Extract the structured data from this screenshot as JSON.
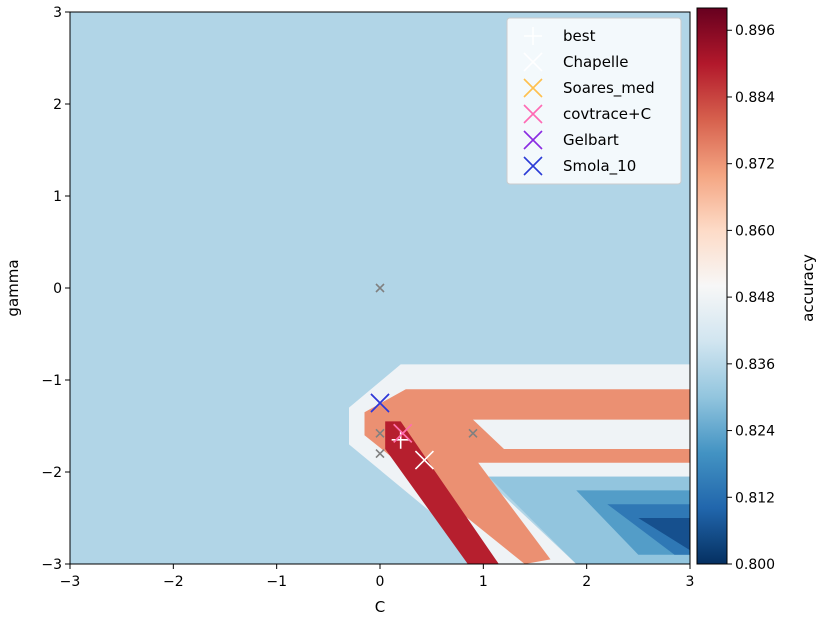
{
  "chart_data": {
    "type": "heatmap",
    "title": "",
    "xlabel": "C",
    "ylabel": "gamma",
    "xlim": [
      -3,
      3
    ],
    "ylim": [
      -3,
      3
    ],
    "x_ticks": [
      -3,
      -2,
      -1,
      0,
      1,
      2,
      3
    ],
    "y_ticks": [
      -3,
      -2,
      -1,
      0,
      1,
      2,
      3
    ],
    "x_tick_labels": [
      "−3",
      "−2",
      "−1",
      "0",
      "1",
      "2",
      "3"
    ],
    "y_tick_labels": [
      "−3",
      "−2",
      "−1",
      "0",
      "1",
      "2",
      "3"
    ],
    "background_value": 0.835,
    "colorbar": {
      "label": "accuracy",
      "range": [
        0.8,
        0.9
      ],
      "ticks": [
        0.8,
        0.812,
        0.824,
        0.836,
        0.848,
        0.86,
        0.872,
        0.884,
        0.896
      ],
      "tick_labels": [
        "0.800",
        "0.812",
        "0.824",
        "0.836",
        "0.848",
        "0.860",
        "0.872",
        "0.884",
        "0.896"
      ],
      "colormap": "RdBu_r"
    },
    "regions": [
      {
        "value": 0.848,
        "polygon": [
          [
            -0.3,
            -1.3
          ],
          [
            0.2,
            -0.83
          ],
          [
            3,
            -0.83
          ],
          [
            3,
            -2.05
          ],
          [
            1.0,
            -2.05
          ],
          [
            1.9,
            -3
          ],
          [
            1.1,
            -3
          ],
          [
            -0.3,
            -1.7
          ]
        ]
      },
      {
        "value": 0.873,
        "polygon": [
          [
            -0.15,
            -1.35
          ],
          [
            0.25,
            -1.1
          ],
          [
            3,
            -1.1
          ],
          [
            3,
            -1.43
          ],
          [
            0.9,
            -1.43
          ],
          [
            1.2,
            -1.75
          ],
          [
            3,
            -1.75
          ],
          [
            3,
            -1.9
          ],
          [
            0.95,
            -1.9
          ],
          [
            1.65,
            -2.95
          ],
          [
            1.4,
            -3
          ],
          [
            -0.15,
            -1.6
          ]
        ]
      },
      {
        "value": 0.889,
        "polygon": [
          [
            0.05,
            -1.45
          ],
          [
            0.2,
            -1.45
          ],
          [
            1.15,
            -3
          ],
          [
            0.85,
            -3
          ],
          [
            0.05,
            -1.75
          ]
        ]
      },
      {
        "value": 0.83,
        "polygon": [
          [
            1.05,
            -2.05
          ],
          [
            3,
            -2.05
          ],
          [
            3,
            -3
          ],
          [
            1.9,
            -3
          ]
        ]
      },
      {
        "value": 0.822,
        "polygon": [
          [
            1.9,
            -2.2
          ],
          [
            3,
            -2.2
          ],
          [
            3,
            -2.9
          ],
          [
            2.5,
            -2.9
          ]
        ]
      },
      {
        "value": 0.814,
        "polygon": [
          [
            2.2,
            -2.35
          ],
          [
            3,
            -2.35
          ],
          [
            3,
            -2.9
          ],
          [
            2.85,
            -2.9
          ]
        ]
      },
      {
        "value": 0.806,
        "polygon": [
          [
            2.5,
            -2.5
          ],
          [
            3,
            -2.5
          ],
          [
            3,
            -2.85
          ]
        ]
      }
    ],
    "grid_points": [
      [
        0,
        0
      ],
      [
        0,
        -1.58
      ],
      [
        0,
        -1.8
      ],
      [
        0.9,
        -1.58
      ]
    ],
    "markers": [
      {
        "name": "best",
        "x": 0.2,
        "y": -1.65,
        "color": "#ffffff",
        "symbol": "plus"
      },
      {
        "name": "Chapelle",
        "x": 0.43,
        "y": -1.87,
        "color": "#ffffff",
        "symbol": "x"
      },
      {
        "name": "Soares_med",
        "x": 0.22,
        "y": -1.58,
        "color": "#ffc04d",
        "symbol": "x"
      },
      {
        "name": "covtrace+C",
        "x": 0.22,
        "y": -1.58,
        "color": "#ff69b4",
        "symbol": "x"
      },
      {
        "name": "Gelbart",
        "x": 0.0,
        "y": -1.25,
        "color": "#8a2be2",
        "symbol": "x"
      },
      {
        "name": "Smola_10",
        "x": 0.0,
        "y": -1.25,
        "color": "#2b3bd6",
        "symbol": "x"
      }
    ],
    "legend": {
      "placement": "top-right",
      "entries": [
        "best",
        "Chapelle",
        "Soares_med",
        "covtrace+C",
        "Gelbart",
        "Smola_10"
      ]
    }
  }
}
